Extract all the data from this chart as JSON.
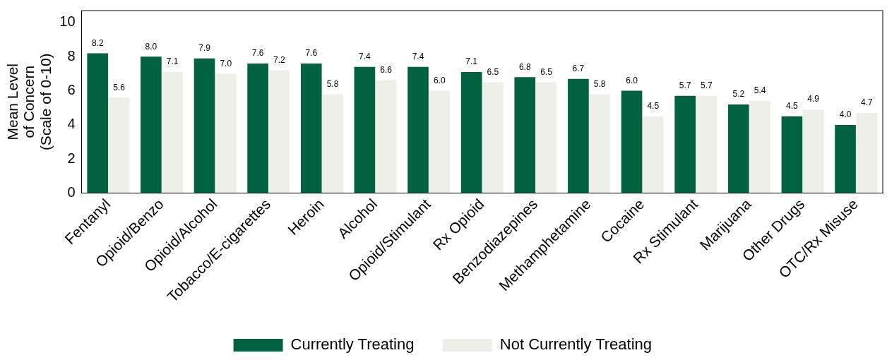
{
  "chart_data": {
    "type": "bar",
    "ylabel": "Mean Level\nof Concern\n(Scale of 0-10)",
    "categories": [
      "Fentanyl",
      "Opioid/Benzo",
      "Opioid/Alcohol",
      "Tobacco/E-cigarettes",
      "Heroin",
      "Alcohol",
      "Opioid/Stimulant",
      "Rx Opioid",
      "Benzodiazepines",
      "Methamphetamine",
      "Cocaine",
      "Rx Stimulant",
      "Marijuana",
      "Other Drugs",
      "OTC/Rx Misuse"
    ],
    "series": [
      {
        "name": "Currently Treating",
        "color": "#006241",
        "values": [
          8.2,
          8.0,
          7.9,
          7.6,
          7.6,
          7.4,
          7.4,
          7.1,
          6.8,
          6.7,
          6.0,
          5.7,
          5.2,
          4.5,
          4.0
        ],
        "value_labels": [
          "8.2",
          "8.0",
          "7.9",
          "7.6",
          "7.6",
          "7.4",
          "7.4",
          "7.1",
          "6.8",
          "6.7",
          "6.0",
          "5.7",
          "5.2",
          "4.5",
          "4.0"
        ]
      },
      {
        "name": "Not Currently Treating",
        "color": "#eeefe8",
        "values": [
          5.6,
          7.1,
          7.0,
          7.2,
          5.8,
          6.6,
          6.0,
          6.5,
          6.5,
          5.8,
          4.5,
          5.7,
          5.4,
          4.9,
          4.7
        ],
        "value_labels": [
          "5.6",
          "7.1",
          "7.0",
          "7.2",
          "5.8",
          "6.6",
          "6.0",
          "6.5",
          "6.5",
          "5.8",
          "4.5",
          "5.7",
          "5.4",
          "4.9",
          "4.7"
        ]
      }
    ],
    "ylim": [
      0,
      10.7
    ],
    "yticks": [
      0,
      2,
      4,
      6,
      8,
      10
    ],
    "grid": false,
    "legend": "bottom"
  }
}
